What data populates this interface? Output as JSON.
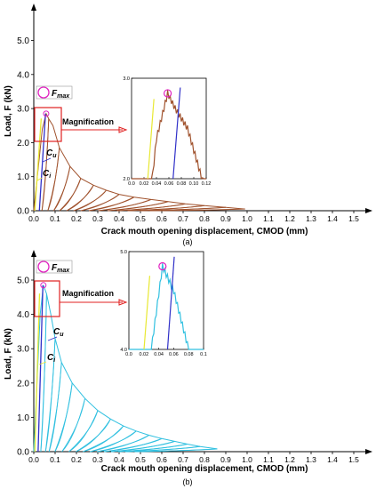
{
  "figure": {
    "panels": [
      {
        "caption": "(a)",
        "legend_label": "F",
        "legend_subscript": "max",
        "magnification_label": "Magnification",
        "annotations": [
          {
            "label": "C",
            "subscript": "u"
          },
          {
            "label": "C",
            "subscript": "i"
          }
        ],
        "inset": {
          "xticks": [
            "0.0",
            "0.02",
            "0.04",
            "0.06",
            "0.08",
            "0.10",
            "0.12"
          ],
          "yticks": [
            "2.0",
            "3.0"
          ]
        }
      },
      {
        "caption": "(b)",
        "legend_label": "F",
        "legend_subscript": "max",
        "magnification_label": "Magnification",
        "annotations": [
          {
            "label": "C",
            "subscript": "u"
          },
          {
            "label": "C",
            "subscript": "i"
          }
        ],
        "inset": {
          "xticks": [
            "0.0",
            "0.02",
            "0.04",
            "0.06",
            "0.08",
            "0.1"
          ],
          "yticks": [
            "4.0",
            "5.0"
          ]
        }
      }
    ]
  },
  "chart_data": [
    {
      "type": "line",
      "title": "",
      "xlabel": "Crack mouth opening displacement, CMOD (mm)",
      "ylabel": "Load, F (kN)",
      "xlim": [
        0,
        1.55
      ],
      "ylim": [
        0,
        5.6
      ],
      "xticks": [
        "0.0",
        "0.1",
        "0.2",
        "0.3",
        "0.4",
        "0.5",
        "0.6",
        "0.7",
        "0.8",
        "0.9",
        "1.0",
        "1.1",
        "1.2",
        "1.3",
        "1.4",
        "1.5"
      ],
      "yticks": [
        "0.0",
        "1.0",
        "2.0",
        "3.0",
        "4.0",
        "5.0"
      ],
      "colors": {
        "cycles": "#a0522d",
        "elastic": "#e8e832",
        "unloading": "#3030c8",
        "fmax": "#e020c0",
        "box": "#e02020"
      },
      "fmax": {
        "x": 0.058,
        "y": 2.85
      },
      "envelope": [
        [
          0,
          0
        ],
        [
          0.02,
          1.2
        ],
        [
          0.04,
          2.4
        ],
        [
          0.058,
          2.85
        ],
        [
          0.07,
          2.7
        ],
        [
          0.09,
          2.5
        ],
        [
          0.12,
          1.85
        ],
        [
          0.17,
          1.3
        ],
        [
          0.22,
          0.95
        ],
        [
          0.28,
          0.75
        ],
        [
          0.34,
          0.6
        ],
        [
          0.4,
          0.48
        ],
        [
          0.47,
          0.4
        ],
        [
          0.55,
          0.33
        ],
        [
          0.63,
          0.27
        ],
        [
          0.71,
          0.2
        ],
        [
          0.8,
          0.15
        ],
        [
          0.9,
          0.1
        ],
        [
          0.99,
          0.05
        ]
      ],
      "unload_points": [
        0.07,
        0.12,
        0.17,
        0.22,
        0.28,
        0.34,
        0.4,
        0.47,
        0.55,
        0.63,
        0.71,
        0.8,
        0.9,
        0.99
      ]
    },
    {
      "type": "line",
      "title": "",
      "xlabel": "Crack mouth opening displacement, CMOD (mm)",
      "ylabel": "Load, F (kN)",
      "xlim": [
        0,
        1.55
      ],
      "ylim": [
        0,
        5.6
      ],
      "xticks": [
        "0.0",
        "0.1",
        "0.2",
        "0.3",
        "0.4",
        "0.5",
        "0.6",
        "0.7",
        "0.8",
        "0.9",
        "1.0",
        "1.1",
        "1.2",
        "1.3",
        "1.4",
        "1.5"
      ],
      "yticks": [
        "0.0",
        "1.0",
        "2.0",
        "3.0",
        "4.0",
        "5.0"
      ],
      "colors": {
        "cycles": "#30c0e0",
        "elastic": "#e8e832",
        "unloading": "#3030c8",
        "fmax": "#e020c0",
        "box": "#e02020"
      },
      "fmax": {
        "x": 0.045,
        "y": 4.85
      },
      "envelope": [
        [
          0,
          0
        ],
        [
          0.015,
          2.0
        ],
        [
          0.03,
          4.0
        ],
        [
          0.045,
          4.85
        ],
        [
          0.06,
          4.6
        ],
        [
          0.08,
          4.0
        ],
        [
          0.1,
          3.3
        ],
        [
          0.13,
          2.6
        ],
        [
          0.18,
          2.0
        ],
        [
          0.24,
          1.55
        ],
        [
          0.3,
          1.2
        ],
        [
          0.36,
          0.95
        ],
        [
          0.42,
          0.75
        ],
        [
          0.48,
          0.6
        ],
        [
          0.54,
          0.48
        ],
        [
          0.6,
          0.38
        ],
        [
          0.66,
          0.3
        ],
        [
          0.72,
          0.22
        ],
        [
          0.78,
          0.15
        ],
        [
          0.86,
          0.08
        ]
      ],
      "unload_points": [
        0.06,
        0.1,
        0.13,
        0.18,
        0.24,
        0.3,
        0.36,
        0.42,
        0.48,
        0.54,
        0.6,
        0.66,
        0.72,
        0.78,
        0.86
      ]
    }
  ]
}
